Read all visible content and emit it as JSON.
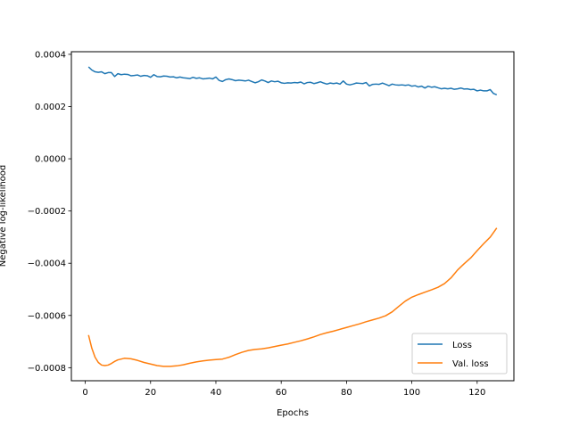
{
  "chart_data": {
    "type": "line",
    "title": "",
    "xlabel": "Epochs",
    "ylabel": "Negative log-likelihood",
    "xlim": [
      -4.25,
      131.25
    ],
    "ylim": [
      -0.00085,
      0.00041
    ],
    "xticks": [
      0,
      20,
      40,
      60,
      80,
      100,
      120
    ],
    "xtick_labels": [
      "0",
      "20",
      "40",
      "60",
      "80",
      "100",
      "120"
    ],
    "yticks": [
      0.0004,
      0.0002,
      0.0,
      -0.0002,
      -0.0004,
      -0.0006,
      -0.0008
    ],
    "ytick_labels": [
      "0.0004",
      "0.0002",
      "0.0000",
      "−0.0002",
      "−0.0004",
      "−0.0006",
      "−0.0008"
    ],
    "grid": false,
    "legend_position": "lower-right",
    "series": [
      {
        "name": "Loss",
        "color": "#1f77b4",
        "x": [
          1,
          2,
          3,
          4,
          5,
          6,
          7,
          8,
          9,
          10,
          11,
          12,
          13,
          14,
          15,
          16,
          17,
          18,
          19,
          20,
          21,
          22,
          23,
          24,
          25,
          26,
          27,
          28,
          29,
          30,
          31,
          32,
          33,
          34,
          35,
          36,
          37,
          38,
          39,
          40,
          41,
          42,
          43,
          44,
          45,
          46,
          47,
          48,
          49,
          50,
          51,
          52,
          53,
          54,
          55,
          56,
          57,
          58,
          59,
          60,
          61,
          62,
          63,
          64,
          65,
          66,
          67,
          68,
          69,
          70,
          71,
          72,
          73,
          74,
          75,
          76,
          77,
          78,
          79,
          80,
          81,
          82,
          83,
          84,
          85,
          86,
          87,
          88,
          89,
          90,
          91,
          92,
          93,
          94,
          95,
          96,
          97,
          98,
          99,
          100,
          101,
          102,
          103,
          104,
          105,
          106,
          107,
          108,
          109,
          110,
          111,
          112,
          113,
          114,
          115,
          116,
          117,
          118,
          119,
          120,
          121,
          122,
          123,
          124,
          125,
          126
        ],
        "y": [
          0.000352,
          0.00034,
          0.000333,
          0.000331,
          0.000333,
          0.000326,
          0.00033,
          0.00033,
          0.000315,
          0.000326,
          0.000322,
          0.000324,
          0.000323,
          0.000318,
          0.000319,
          0.000321,
          0.000316,
          0.000319,
          0.000318,
          0.000312,
          0.000322,
          0.000315,
          0.000314,
          0.000317,
          0.000316,
          0.000313,
          0.000314,
          0.00031,
          0.000313,
          0.00031,
          0.000309,
          0.000307,
          0.000312,
          0.000308,
          0.00031,
          0.000306,
          0.000307,
          0.000309,
          0.000306,
          0.000313,
          0.0003,
          0.000296,
          0.000303,
          0.000306,
          0.000303,
          0.000299,
          0.000301,
          0.0003,
          0.000298,
          0.000301,
          0.000296,
          0.000291,
          0.000295,
          0.000302,
          0.000298,
          0.000292,
          0.000298,
          0.000295,
          0.000297,
          0.000291,
          0.000289,
          0.000291,
          0.00029,
          0.000292,
          0.000291,
          0.000294,
          0.000287,
          0.000292,
          0.000293,
          0.000288,
          0.000291,
          0.000295,
          0.00029,
          0.000286,
          0.00029,
          0.000288,
          0.00029,
          0.000286,
          0.000298,
          0.000286,
          0.000283,
          0.000286,
          0.00029,
          0.000289,
          0.000288,
          0.000292,
          0.000279,
          0.000285,
          0.000286,
          0.000285,
          0.00029,
          0.000285,
          0.00028,
          0.000286,
          0.000283,
          0.000282,
          0.000283,
          0.000281,
          0.000283,
          0.000278,
          0.00028,
          0.000275,
          0.000278,
          0.000271,
          0.000278,
          0.000274,
          0.000276,
          0.000272,
          0.000268,
          0.00027,
          0.000268,
          0.00027,
          0.000266,
          0.000268,
          0.000271,
          0.000267,
          0.000268,
          0.000265,
          0.000266,
          0.00026,
          0.000263,
          0.00026,
          0.00026,
          0.000265,
          0.00025,
          0.000245
        ]
      },
      {
        "name": "Val. loss",
        "color": "#ff7f0e",
        "x": [
          1,
          2,
          3,
          4,
          5,
          6,
          7,
          8,
          9,
          10,
          12,
          14,
          16,
          18,
          20,
          22,
          24,
          26,
          28,
          30,
          32,
          34,
          36,
          38,
          40,
          42,
          44,
          46,
          48,
          50,
          52,
          54,
          56,
          58,
          60,
          62,
          64,
          66,
          68,
          70,
          72,
          74,
          76,
          78,
          80,
          82,
          84,
          86,
          88,
          90,
          92,
          94,
          96,
          98,
          100,
          102,
          104,
          106,
          108,
          110,
          112,
          114,
          116,
          118,
          120,
          122,
          124,
          126
        ],
        "y": [
          -0.000675,
          -0.000725,
          -0.00076,
          -0.00078,
          -0.00079,
          -0.000792,
          -0.00079,
          -0.000784,
          -0.000776,
          -0.00077,
          -0.000764,
          -0.000766,
          -0.000772,
          -0.00078,
          -0.000786,
          -0.000792,
          -0.000795,
          -0.000795,
          -0.000793,
          -0.000789,
          -0.000783,
          -0.000778,
          -0.000774,
          -0.000771,
          -0.000769,
          -0.000767,
          -0.00076,
          -0.00075,
          -0.000741,
          -0.000734,
          -0.00073,
          -0.000728,
          -0.000724,
          -0.000719,
          -0.000714,
          -0.000709,
          -0.000703,
          -0.000697,
          -0.00069,
          -0.000682,
          -0.000673,
          -0.000666,
          -0.00066,
          -0.000653,
          -0.000646,
          -0.000639,
          -0.000632,
          -0.000624,
          -0.000617,
          -0.00061,
          -0.000601,
          -0.000586,
          -0.000565,
          -0.000545,
          -0.00053,
          -0.00052,
          -0.000511,
          -0.000502,
          -0.000492,
          -0.000478,
          -0.000456,
          -0.000426,
          -0.000402,
          -0.00038,
          -0.000352,
          -0.000325,
          -0.0003,
          -0.000265
        ]
      }
    ]
  }
}
